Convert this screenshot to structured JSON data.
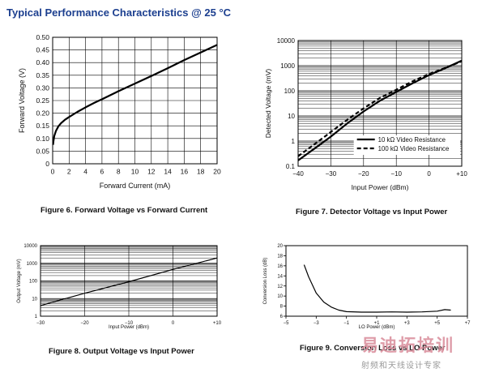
{
  "header": "Typical Performance Characteristics @ 25 °C",
  "watermark": {
    "main": "易迪拓培训",
    "sub": "射频和天线设计专家"
  },
  "chart_data": [
    {
      "type": "line",
      "caption": "Figure 6. Forward Voltage vs Forward Current",
      "xlabel": "Forward Current (mA)",
      "ylabel": "Forward Voltage (V)",
      "xlim": [
        0,
        20
      ],
      "ylim": [
        0,
        0.5
      ],
      "xticks": [
        0,
        2,
        4,
        6,
        8,
        10,
        12,
        14,
        16,
        18,
        20
      ],
      "xtick_labels": [
        "0",
        "2",
        "4",
        "6",
        "8",
        "10",
        "12",
        "14",
        "16",
        "18",
        "20"
      ],
      "yticks": [
        0,
        0.05,
        0.1,
        0.15,
        0.2,
        0.25,
        0.3,
        0.35,
        0.4,
        0.45,
        0.5
      ],
      "ytick_labels": [
        "0",
        "0.05",
        "0.10",
        "0.15",
        "0.20",
        "0.25",
        "0.30",
        "0.35",
        "0.40",
        "0.45",
        "0.50"
      ],
      "grid": true,
      "series": [
        {
          "x": [
            0.05,
            0.1,
            0.2,
            0.4,
            0.7,
            1,
            1.5,
            2,
            3,
            4,
            5,
            6,
            8,
            10,
            12,
            14,
            16,
            18,
            20
          ],
          "y": [
            0.075,
            0.09,
            0.11,
            0.13,
            0.148,
            0.16,
            0.174,
            0.185,
            0.205,
            0.223,
            0.24,
            0.255,
            0.287,
            0.317,
            0.347,
            0.378,
            0.41,
            0.44,
            0.47
          ]
        }
      ]
    },
    {
      "type": "line",
      "caption": "Figure 7. Detector Voltage vs Input Power",
      "xlabel": "Input Power (dBm)",
      "ylabel": "Detected Voltage (mV)",
      "xlim": [
        -40,
        10
      ],
      "ylim": [
        0.1,
        10000
      ],
      "yscale": "log",
      "xticks": [
        -40,
        -30,
        -20,
        -10,
        0,
        10
      ],
      "xtick_labels": [
        "−40",
        "−30",
        "−20",
        "−10",
        "0",
        "+10"
      ],
      "yticks": [
        0.1,
        1,
        10,
        100,
        1000,
        10000
      ],
      "ytick_labels": [
        "0.1",
        "1",
        "10",
        "100",
        "1000",
        "10000"
      ],
      "grid": true,
      "legend_position": "bottom-right",
      "series": [
        {
          "name": "10 kΩ Video Resistance",
          "style": "solid",
          "x": [
            -40,
            -35,
            -30,
            -25,
            -20,
            -15,
            -10,
            -5,
            0,
            5,
            10
          ],
          "y": [
            0.17,
            0.5,
            1.5,
            5,
            15,
            40,
            90,
            200,
            420,
            800,
            1600
          ]
        },
        {
          "name": "100 kΩ Video Resistance",
          "style": "dashed",
          "x": [
            -40,
            -35,
            -30,
            -25,
            -20,
            -15,
            -10,
            -5,
            0,
            5,
            10
          ],
          "y": [
            0.25,
            0.75,
            2.3,
            7,
            20,
            52,
            110,
            240,
            470,
            820,
            1500
          ]
        }
      ]
    },
    {
      "type": "line",
      "caption": "Figure 8. Output Voltage vs Input Power",
      "xlabel": "Input Power (dBm)",
      "ylabel": "Output Voltage (mV)",
      "xlim": [
        -30,
        10
      ],
      "ylim": [
        1,
        10000
      ],
      "yscale": "log",
      "xticks": [
        -30,
        -20,
        -10,
        0,
        10
      ],
      "xtick_labels": [
        "−30",
        "−20",
        "−10",
        "0",
        "+10"
      ],
      "yticks": [
        1,
        10,
        100,
        1000,
        10000
      ],
      "ytick_labels": [
        "1",
        "10",
        "100",
        "1000",
        "10000"
      ],
      "grid": true,
      "series": [
        {
          "x": [
            -30,
            -20,
            -10,
            0,
            10
          ],
          "y": [
            4,
            20,
            90,
            450,
            2000
          ]
        }
      ]
    },
    {
      "type": "line",
      "caption": "Figure 9. Conversion Loss vs LO Power",
      "xlabel": "LO Power (dBm)",
      "ylabel": "Conversion Loss (dB)",
      "xlim": [
        -5,
        7
      ],
      "ylim": [
        6,
        20
      ],
      "xticks": [
        -5,
        -3,
        -1,
        1,
        3,
        5,
        7
      ],
      "xtick_labels": [
        "−5",
        "−3",
        "−1",
        "+1",
        "+3",
        "+5",
        "+7"
      ],
      "yticks": [
        6,
        8,
        10,
        12,
        14,
        16,
        18,
        20
      ],
      "ytick_labels": [
        "6",
        "8",
        "10",
        "12",
        "14",
        "16",
        "18",
        "20"
      ],
      "grid": false,
      "series": [
        {
          "x": [
            -3.8,
            -3.5,
            -3,
            -2.5,
            -2,
            -1.5,
            -1,
            0,
            1,
            2,
            3,
            4,
            5,
            5.5,
            5.9
          ],
          "y": [
            16.2,
            13.8,
            10.6,
            8.8,
            7.8,
            7.2,
            6.9,
            6.8,
            6.8,
            6.85,
            6.8,
            6.85,
            7,
            7.3,
            7.2
          ]
        }
      ]
    }
  ]
}
